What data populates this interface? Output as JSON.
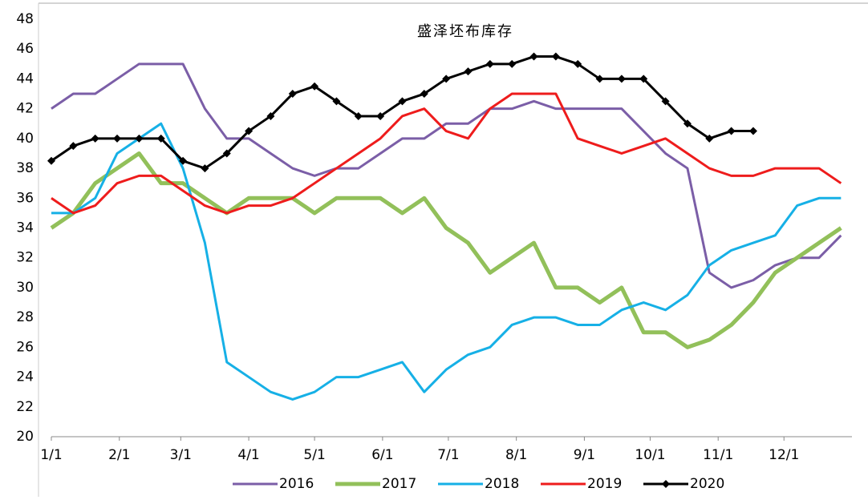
{
  "chart_data": {
    "type": "line",
    "title": "盛泽坯布库存",
    "x": [
      0,
      10,
      20,
      30,
      40,
      50,
      60,
      70,
      80,
      90,
      100,
      110,
      120,
      130,
      140,
      150,
      160,
      170,
      180,
      190,
      200,
      210,
      220,
      230,
      240,
      250,
      260,
      270,
      280,
      290,
      300,
      310,
      320,
      330,
      340,
      350,
      360
    ],
    "xlim": [
      0,
      365
    ],
    "xticks": [
      {
        "value": 0,
        "label": "1/1"
      },
      {
        "value": 31,
        "label": "2/1"
      },
      {
        "value": 59,
        "label": "3/1"
      },
      {
        "value": 90,
        "label": "4/1"
      },
      {
        "value": 120,
        "label": "5/1"
      },
      {
        "value": 151,
        "label": "6/1"
      },
      {
        "value": 181,
        "label": "7/1"
      },
      {
        "value": 212,
        "label": "8/1"
      },
      {
        "value": 243,
        "label": "9/1"
      },
      {
        "value": 273,
        "label": "10/1"
      },
      {
        "value": 304,
        "label": "11/1"
      },
      {
        "value": 334,
        "label": "12/1"
      }
    ],
    "ylim": [
      20,
      48
    ],
    "yticks": [
      20,
      22,
      24,
      26,
      28,
      30,
      32,
      34,
      36,
      38,
      40,
      42,
      44,
      46,
      48
    ],
    "grid": false,
    "legend": "bottom",
    "series": [
      {
        "name": "2016",
        "color": "#7b5ea7",
        "values": [
          42,
          43,
          43,
          44,
          45,
          45,
          45,
          42,
          40,
          40,
          39,
          38,
          37.5,
          38,
          38,
          39,
          40,
          40,
          41,
          41,
          42,
          42,
          42.5,
          42,
          42,
          42,
          42,
          40.5,
          39,
          38,
          31,
          30,
          30.5,
          31.5,
          32,
          32,
          33.5
        ]
      },
      {
        "name": "2017",
        "color": "#92c05a",
        "values": [
          34,
          35,
          37,
          38,
          39,
          37,
          37,
          36,
          35,
          36,
          36,
          36,
          35,
          36,
          36,
          36,
          35,
          36,
          34,
          33,
          31,
          32,
          33,
          30,
          30,
          29,
          30,
          27,
          27,
          26,
          26.5,
          27.5,
          29,
          31,
          32,
          33,
          34
        ]
      },
      {
        "name": "2018",
        "color": "#16b0e6",
        "values": [
          35,
          35,
          36,
          39,
          40,
          41,
          38,
          33,
          25,
          24,
          23,
          22.5,
          23,
          24,
          24,
          24.5,
          25,
          23,
          24.5,
          25.5,
          26,
          27.5,
          28,
          28,
          27.5,
          27.5,
          28.5,
          29,
          28.5,
          29.5,
          31.5,
          32.5,
          33,
          33.5,
          35.5,
          36,
          36
        ]
      },
      {
        "name": "2019",
        "color": "#ee1c1c",
        "values": [
          36,
          35,
          35.5,
          37,
          37.5,
          37.5,
          36.5,
          35.5,
          35,
          35.5,
          35.5,
          36,
          37,
          38,
          39,
          40,
          41.5,
          42,
          40.5,
          40,
          42,
          43,
          43,
          43,
          40,
          39.5,
          39,
          39.5,
          40,
          39,
          38,
          37.5,
          37.5,
          38,
          38,
          38,
          37
        ]
      },
      {
        "name": "2020",
        "color": "#000000",
        "marker": "diamond",
        "values": [
          38.5,
          39.5,
          40,
          40,
          40,
          40,
          38.5,
          38,
          39,
          40.5,
          41.5,
          43,
          43.5,
          42.5,
          41.5,
          41.5,
          42.5,
          43,
          44,
          44.5,
          45,
          45,
          45.5,
          45.5,
          45,
          44,
          44,
          44,
          42.5,
          41,
          40,
          40.5,
          40.5,
          null,
          null,
          null,
          null
        ]
      }
    ]
  }
}
